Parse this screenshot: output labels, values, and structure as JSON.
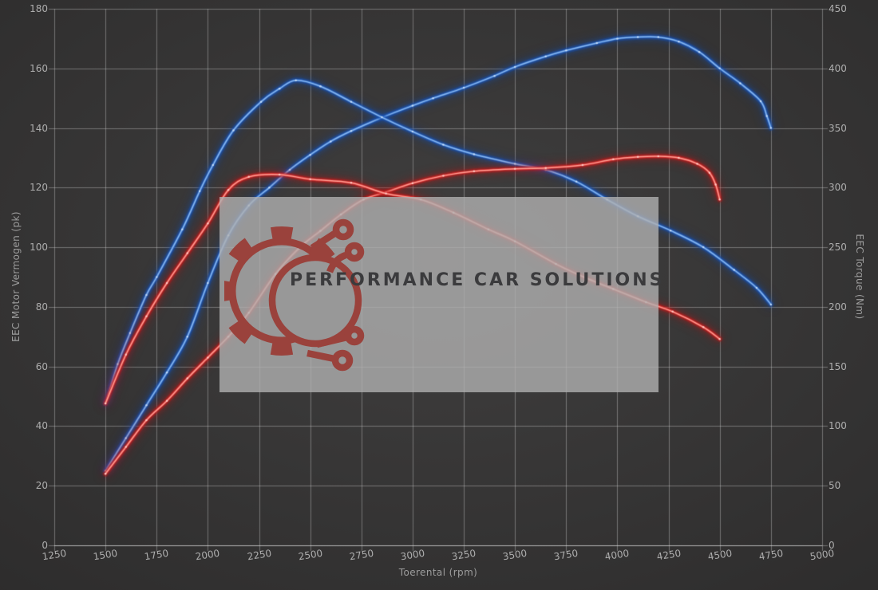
{
  "watermark": {
    "text": "PERFORMANCE CAR SOLUTIONS"
  },
  "axes": {
    "x": {
      "label": "Toerental (rpm)",
      "min": 1250,
      "max": 5000,
      "ticks": [
        1250,
        1500,
        1750,
        2000,
        2250,
        2500,
        2750,
        3000,
        3250,
        3500,
        3750,
        4000,
        4250,
        4500,
        4750,
        5000
      ]
    },
    "y_left": {
      "label": "EEC Motor Vermogen (pk)",
      "min": 0,
      "max": 180,
      "ticks": [
        0,
        20,
        40,
        60,
        80,
        100,
        120,
        140,
        160,
        180
      ]
    },
    "y_right": {
      "label": "EEC Torque (Nm)",
      "min": 0,
      "max": 450,
      "ticks": [
        0,
        50,
        100,
        150,
        200,
        250,
        300,
        350,
        400,
        450
      ]
    }
  },
  "colors": {
    "grid": "rgba(205,205,205,0.42)",
    "axis_line": "rgba(215,215,215,0.65)",
    "tick_text": "#aeaeae",
    "logo_red": "#9a423c",
    "blue": {
      "glow": "#1550b4",
      "mid": "#2f6fd0",
      "core": "#8ab8ee",
      "dot": "#d3e6fb"
    },
    "red": {
      "glow": "#c01818",
      "mid": "#e23535",
      "core": "#ff9d92",
      "dot": "#ffd9d4"
    }
  },
  "chart_data": {
    "type": "line",
    "title": "",
    "xlabel": "Toerental (rpm)",
    "ylabel_left": "EEC Motor Vermogen (pk)",
    "ylabel_right": "EEC Torque (Nm)",
    "x_range": [
      1250,
      5000
    ],
    "y_left_range": [
      0,
      180
    ],
    "y_right_range": [
      0,
      450
    ],
    "grid": true,
    "legend": "none",
    "series": [
      {
        "name": "blue-power",
        "color": "blue",
        "axis": "left",
        "unit": "pk",
        "points": [
          [
            1500,
            25
          ],
          [
            1600,
            36
          ],
          [
            1700,
            47
          ],
          [
            1800,
            58
          ],
          [
            1900,
            70
          ],
          [
            2000,
            88
          ],
          [
            2100,
            104
          ],
          [
            2200,
            114
          ],
          [
            2300,
            120
          ],
          [
            2400,
            126
          ],
          [
            2500,
            131
          ],
          [
            2600,
            135.5
          ],
          [
            2700,
            139
          ],
          [
            2850,
            143.5
          ],
          [
            3000,
            147.5
          ],
          [
            3100,
            150
          ],
          [
            3250,
            153.5
          ],
          [
            3400,
            157.5
          ],
          [
            3500,
            160.5
          ],
          [
            3650,
            164
          ],
          [
            3750,
            166
          ],
          [
            3900,
            168.5
          ],
          [
            4000,
            170
          ],
          [
            4100,
            170.5
          ],
          [
            4200,
            170.5
          ],
          [
            4300,
            169
          ],
          [
            4400,
            165.5
          ],
          [
            4500,
            160
          ],
          [
            4600,
            155
          ],
          [
            4700,
            149
          ],
          [
            4730,
            144
          ],
          [
            4750,
            140
          ]
        ]
      },
      {
        "name": "blue-torque",
        "color": "blue",
        "axis": "right",
        "unit": "Nm",
        "points": [
          [
            1500,
            119
          ],
          [
            1560,
            152
          ],
          [
            1620,
            178
          ],
          [
            1700,
            210
          ],
          [
            1750,
            225
          ],
          [
            1875,
            265
          ],
          [
            1960,
            297
          ],
          [
            2025,
            319
          ],
          [
            2125,
            348
          ],
          [
            2260,
            372
          ],
          [
            2350,
            383
          ],
          [
            2430,
            390
          ],
          [
            2550,
            385
          ],
          [
            2700,
            372
          ],
          [
            2850,
            359
          ],
          [
            3000,
            347
          ],
          [
            3150,
            336
          ],
          [
            3300,
            328
          ],
          [
            3500,
            320
          ],
          [
            3650,
            315
          ],
          [
            3800,
            305
          ],
          [
            3950,
            290
          ],
          [
            4100,
            276
          ],
          [
            4260,
            264
          ],
          [
            4420,
            250
          ],
          [
            4570,
            231
          ],
          [
            4680,
            216
          ],
          [
            4750,
            202
          ]
        ]
      },
      {
        "name": "red-power",
        "color": "red",
        "axis": "left",
        "unit": "pk",
        "points": [
          [
            1500,
            24
          ],
          [
            1600,
            33
          ],
          [
            1700,
            42
          ],
          [
            1800,
            48.5
          ],
          [
            1900,
            56
          ],
          [
            2000,
            63
          ],
          [
            2100,
            70
          ],
          [
            2200,
            78
          ],
          [
            2330,
            91
          ],
          [
            2450,
            100
          ],
          [
            2550,
            105.5
          ],
          [
            2650,
            111
          ],
          [
            2760,
            116
          ],
          [
            2870,
            118.5
          ],
          [
            3000,
            121.5
          ],
          [
            3150,
            124
          ],
          [
            3300,
            125.5
          ],
          [
            3500,
            126.3
          ],
          [
            3650,
            126.6
          ],
          [
            3830,
            127.6
          ],
          [
            3980,
            129.5
          ],
          [
            4100,
            130.3
          ],
          [
            4200,
            130.5
          ],
          [
            4300,
            130
          ],
          [
            4390,
            128
          ],
          [
            4450,
            125
          ],
          [
            4480,
            121
          ],
          [
            4500,
            116
          ]
        ]
      },
      {
        "name": "red-torque",
        "color": "red",
        "axis": "right",
        "unit": "Nm",
        "points": [
          [
            1500,
            119
          ],
          [
            1600,
            160
          ],
          [
            1700,
            192
          ],
          [
            1800,
            220
          ],
          [
            1900,
            245
          ],
          [
            2000,
            270
          ],
          [
            2100,
            298
          ],
          [
            2200,
            309
          ],
          [
            2350,
            311
          ],
          [
            2500,
            307
          ],
          [
            2700,
            304
          ],
          [
            2870,
            295
          ],
          [
            3040,
            290
          ],
          [
            3200,
            279
          ],
          [
            3370,
            265
          ],
          [
            3500,
            255
          ],
          [
            3700,
            236
          ],
          [
            3850,
            224
          ],
          [
            3980,
            215
          ],
          [
            4140,
            204
          ],
          [
            4270,
            196
          ],
          [
            4420,
            183
          ],
          [
            4500,
            173
          ]
        ]
      }
    ]
  }
}
